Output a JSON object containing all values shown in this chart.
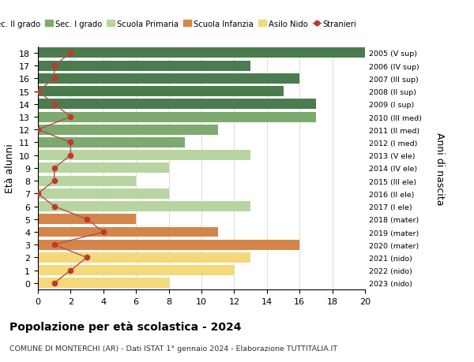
{
  "ages": [
    18,
    17,
    16,
    15,
    14,
    13,
    12,
    11,
    10,
    9,
    8,
    7,
    6,
    5,
    4,
    3,
    2,
    1,
    0
  ],
  "right_labels_by_age": {
    "18": "2005 (V sup)",
    "17": "2006 (IV sup)",
    "16": "2007 (III sup)",
    "15": "2008 (II sup)",
    "14": "2009 (I sup)",
    "13": "2010 (III med)",
    "12": "2011 (II med)",
    "11": "2012 (I med)",
    "10": "2013 (V ele)",
    "9": "2014 (IV ele)",
    "8": "2015 (III ele)",
    "7": "2016 (II ele)",
    "6": "2017 (I ele)",
    "5": "2018 (mater)",
    "4": "2019 (mater)",
    "3": "2020 (mater)",
    "2": "2021 (nido)",
    "1": "2022 (nido)",
    "0": "2023 (nido)"
  },
  "bar_values_by_age": {
    "18": 20,
    "17": 13,
    "16": 16,
    "15": 15,
    "14": 17,
    "13": 17,
    "12": 11,
    "11": 9,
    "10": 13,
    "9": 8,
    "8": 6,
    "7": 8,
    "6": 13,
    "5": 6,
    "4": 11,
    "3": 16,
    "2": 13,
    "1": 12,
    "0": 8
  },
  "bar_colors_by_age": {
    "18": "#4a7c4e",
    "17": "#4a7c4e",
    "16": "#4a7c4e",
    "15": "#4a7c4e",
    "14": "#4a7c4e",
    "13": "#7daa6e",
    "12": "#7daa6e",
    "11": "#7daa6e",
    "10": "#b8d4a0",
    "9": "#b8d4a0",
    "8": "#b8d4a0",
    "7": "#b8d4a0",
    "6": "#b8d4a0",
    "5": "#d4854a",
    "4": "#d4854a",
    "3": "#d4854a",
    "2": "#f5d87a",
    "1": "#f5d87a",
    "0": "#f5d87a"
  },
  "stranieri_by_age": {
    "18": 2,
    "17": 1,
    "16": 1,
    "15": 0,
    "14": 1,
    "13": 2,
    "12": 0,
    "11": 2,
    "10": 2,
    "9": 1,
    "8": 1,
    "7": 0,
    "6": 1,
    "5": 3,
    "4": 4,
    "3": 1,
    "2": 3,
    "1": 2,
    "0": 1
  },
  "xlim": [
    0,
    20
  ],
  "ylim": [
    -0.5,
    18.5
  ],
  "xticks": [
    0,
    2,
    4,
    6,
    8,
    10,
    12,
    14,
    16,
    18,
    20
  ],
  "yticks": [
    0,
    1,
    2,
    3,
    4,
    5,
    6,
    7,
    8,
    9,
    10,
    11,
    12,
    13,
    14,
    15,
    16,
    17,
    18
  ],
  "ylabel": "Età alunni",
  "right_ylabel": "Anni di nascita",
  "title": "Popolazione per età scolastica - 2024",
  "subtitle": "COMUNE DI MONTERCHI (AR) - Dati ISTAT 1° gennaio 2024 - Elaborazione TUTTITALIA.IT",
  "legend_labels": [
    "Sec. II grado",
    "Sec. I grado",
    "Scuola Primaria",
    "Scuola Infanzia",
    "Asilo Nido",
    "Stranieri"
  ],
  "legend_colors": [
    "#4a7c4e",
    "#7daa6e",
    "#b8d4a0",
    "#d4854a",
    "#f5d87a",
    "#c0392b"
  ],
  "stranieri_color": "#c0392b",
  "stranieri_line_color": "#b05050",
  "grid_color": "#dddddd",
  "bar_height": 0.8,
  "background_color": "#ffffff"
}
